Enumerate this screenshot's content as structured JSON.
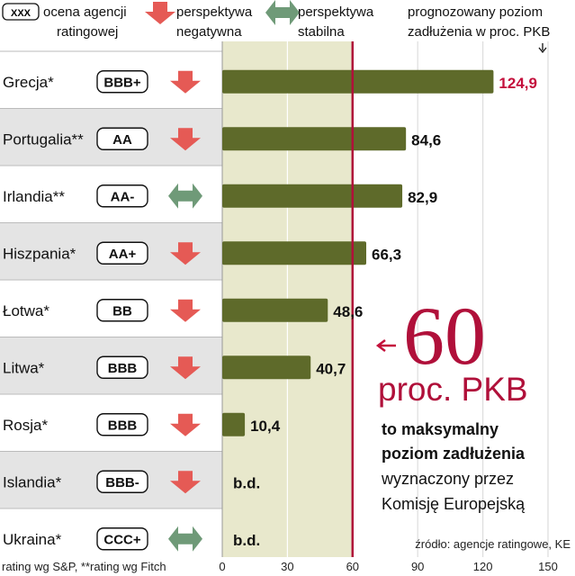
{
  "legend": {
    "rating_box": "XXX",
    "rating_label": [
      "ocena agencji",
      "ratingowej"
    ],
    "negative_label": [
      "perspektywa",
      "negatywna"
    ],
    "stable_label": [
      "perspektywa",
      "stabilna"
    ],
    "forecast_label": [
      "prognozowany poziom",
      "zadłużenia w proc. PKB"
    ]
  },
  "colors": {
    "bar": "#5e6a2a",
    "bar_highlight_value": "#c4103c",
    "band": "#e8e8cc",
    "row_alt": "#e4e4e4",
    "threshold_line": "#b0103a",
    "negative_arrow": "#e55a55",
    "stable_arrow": "#6f9a78"
  },
  "chart_data": {
    "type": "bar",
    "orientation": "horizontal",
    "categories": [
      "Grecja*",
      "Portugalia**",
      "Irlandia**",
      "Hiszpania*",
      "Łotwa*",
      "Litwa*",
      "Rosja*",
      "Islandia*",
      "Ukraina*"
    ],
    "ratings": [
      "BBB+",
      "AA",
      "AA-",
      "AA+",
      "BB",
      "BBB",
      "BBB",
      "BBB-",
      "CCC+"
    ],
    "outlooks": [
      "negative",
      "negative",
      "stable",
      "negative",
      "negative",
      "negative",
      "negative",
      "negative",
      "stable"
    ],
    "values": [
      124.9,
      84.6,
      82.9,
      66.3,
      48.6,
      40.7,
      10.4,
      null,
      null
    ],
    "value_labels": [
      "124,9",
      "84,6",
      "82,9",
      "66,3",
      "48,6",
      "40,7",
      "10,4",
      "b.d.",
      "b.d."
    ],
    "highlight_index": 0,
    "xlim": [
      0,
      150
    ],
    "xticks": [
      0,
      30,
      60,
      90,
      120,
      150
    ],
    "threshold": 60
  },
  "callout": {
    "big_number": "60",
    "unit": "proc. PKB",
    "bold_text": [
      "to maksymalny",
      "poziom zadłużenia"
    ],
    "text": [
      "wyznaczony przez",
      "Komisję Europejską"
    ]
  },
  "footnote": "rating wg S&P, **rating wg Fitch",
  "source": "źródło: agencje ratingowe, KE"
}
